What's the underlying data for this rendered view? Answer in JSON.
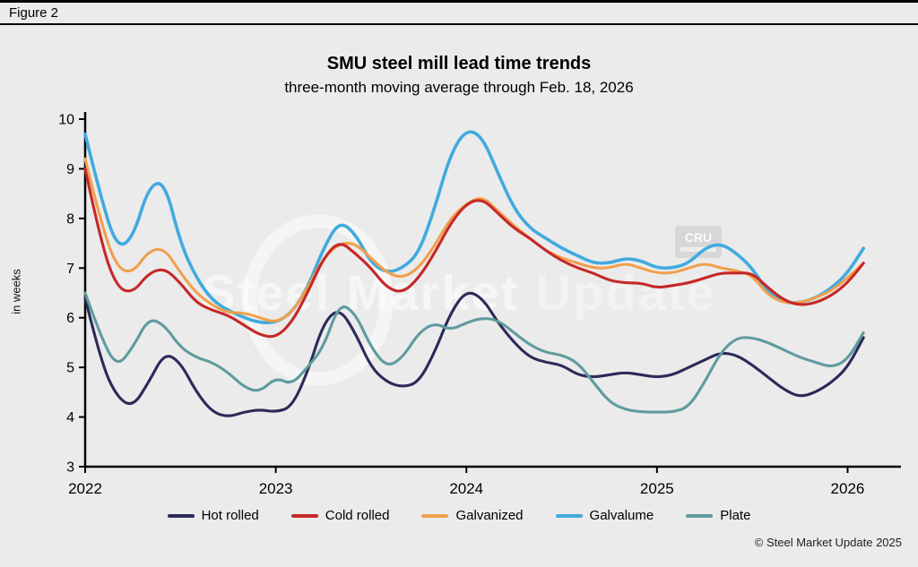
{
  "figure_label": "Figure 2",
  "header": {
    "title": "SMU steel mill lead time trends",
    "subtitle": "three-month moving average through Feb. 18, 2026"
  },
  "watermark": {
    "part1": "Steel Market ",
    "part2": "Update",
    "badge": "CRU"
  },
  "copyright": "© Steel Market Update 2025",
  "chart_data": {
    "type": "line",
    "title": "SMU steel mill lead time trends",
    "subtitle": "three-month moving average through Feb. 18, 2026",
    "xlabel": "",
    "ylabel": "in weeks",
    "ylim": [
      3,
      10
    ],
    "y_ticks": [
      3,
      4,
      5,
      6,
      7,
      8,
      9,
      10
    ],
    "x_ticks": [
      2022,
      2023,
      2024,
      2025,
      2026
    ],
    "x_range": [
      2022,
      2026.28
    ],
    "x_start_year": 2022,
    "x_step": "monthly (Jan 2022 through Feb 2026)",
    "grid": false,
    "legend_position": "bottom",
    "series": [
      {
        "name": "Hot rolled",
        "color": "#2b2a59",
        "values": [
          6.4,
          5.1,
          4.4,
          4.2,
          4.7,
          5.3,
          5.1,
          4.5,
          4.1,
          4.0,
          4.1,
          4.15,
          4.1,
          4.2,
          4.9,
          5.9,
          6.2,
          5.7,
          5.0,
          4.7,
          4.6,
          4.7,
          5.3,
          6.1,
          6.55,
          6.4,
          5.9,
          5.5,
          5.2,
          5.1,
          5.05,
          4.85,
          4.8,
          4.85,
          4.9,
          4.85,
          4.8,
          4.85,
          5.0,
          5.15,
          5.3,
          5.25,
          5.05,
          4.8,
          4.55,
          4.4,
          4.5,
          4.7,
          5.0,
          5.6
        ]
      },
      {
        "name": "Cold rolled",
        "color": "#c62828",
        "values": [
          9.0,
          7.5,
          6.6,
          6.5,
          6.9,
          7.0,
          6.7,
          6.3,
          6.15,
          6.05,
          5.85,
          5.65,
          5.6,
          5.9,
          6.5,
          7.2,
          7.55,
          7.3,
          7.0,
          6.6,
          6.5,
          6.8,
          7.3,
          7.9,
          8.3,
          8.4,
          8.1,
          7.8,
          7.6,
          7.35,
          7.15,
          7.0,
          6.9,
          6.75,
          6.7,
          6.7,
          6.6,
          6.65,
          6.7,
          6.8,
          6.9,
          6.9,
          6.9,
          6.6,
          6.35,
          6.25,
          6.3,
          6.45,
          6.7,
          7.1
        ]
      },
      {
        "name": "Galvanized",
        "color": "#f0a04c",
        "values": [
          9.2,
          7.9,
          7.0,
          6.9,
          7.35,
          7.4,
          6.9,
          6.5,
          6.25,
          6.1,
          6.1,
          6.0,
          5.9,
          6.1,
          6.6,
          7.2,
          7.5,
          7.5,
          7.2,
          6.9,
          6.8,
          7.0,
          7.45,
          8.0,
          8.3,
          8.45,
          8.15,
          7.85,
          7.6,
          7.35,
          7.2,
          7.1,
          7.0,
          7.0,
          7.1,
          7.0,
          6.9,
          6.9,
          7.0,
          7.1,
          7.0,
          6.95,
          6.85,
          6.45,
          6.3,
          6.3,
          6.4,
          6.55,
          6.8,
          7.1
        ]
      },
      {
        "name": "Galvalume",
        "color": "#41aade",
        "values": [
          9.7,
          8.4,
          7.4,
          7.6,
          8.65,
          8.75,
          7.5,
          6.8,
          6.35,
          6.15,
          6.0,
          5.9,
          5.9,
          6.1,
          6.6,
          7.4,
          7.95,
          7.7,
          7.1,
          6.9,
          7.0,
          7.3,
          8.2,
          9.3,
          9.8,
          9.65,
          8.9,
          8.2,
          7.8,
          7.6,
          7.4,
          7.25,
          7.1,
          7.1,
          7.2,
          7.15,
          7.0,
          7.0,
          7.1,
          7.4,
          7.5,
          7.3,
          7.0,
          6.5,
          6.3,
          6.3,
          6.4,
          6.6,
          6.9,
          7.4
        ]
      },
      {
        "name": "Plate",
        "color": "#5f9b9e",
        "values": [
          6.5,
          5.6,
          5.0,
          5.4,
          6.0,
          5.85,
          5.4,
          5.2,
          5.1,
          4.9,
          4.6,
          4.5,
          4.8,
          4.65,
          5.0,
          5.4,
          6.3,
          6.1,
          5.4,
          5.0,
          5.2,
          5.7,
          5.9,
          5.75,
          5.9,
          6.0,
          5.95,
          5.7,
          5.45,
          5.3,
          5.25,
          5.1,
          4.7,
          4.3,
          4.15,
          4.1,
          4.1,
          4.1,
          4.2,
          4.7,
          5.3,
          5.6,
          5.6,
          5.5,
          5.35,
          5.2,
          5.1,
          5.0,
          5.15,
          5.7
        ]
      }
    ]
  }
}
